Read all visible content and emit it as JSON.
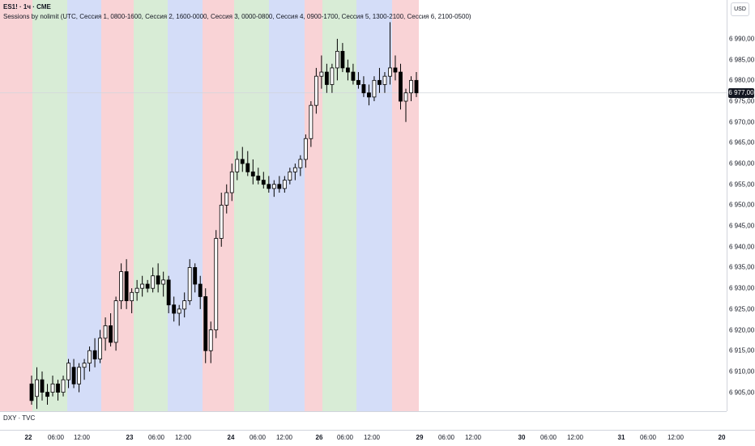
{
  "legend": {
    "symbol": "ES1! · 1ч · CME",
    "indicator": "Sessions by nolimit (UTC, Сессия 1, 0800-1600, Сессия 2, 1600-0000, Сессия 3, 0000-0800, Сессия 4, 0900-1700, Сессия 5, 1300-2100, Сессия 6, 2100-0500)"
  },
  "currency": "USD",
  "current_price_label": "6 977,00",
  "sub_pane_label": "DXY · TVC",
  "colors": {
    "session_red": "#f9d3d6",
    "session_green": "#d8ecd6",
    "session_blue": "#d4ddf8",
    "candle": "#000000"
  },
  "price_ticks": [
    "6 990,00",
    "6 985,00",
    "6 980,00",
    "6 975,00",
    "6 970,00",
    "6 965,00",
    "6 960,00",
    "6 955,00",
    "6 950,00",
    "6 945,00",
    "6 940,00",
    "6 935,00",
    "6 930,00",
    "6 925,00",
    "6 920,00",
    "6 915,00",
    "6 910,00",
    "6 905,00"
  ],
  "time_ticks": [
    {
      "label": "22",
      "bold": true
    },
    {
      "label": "06:00",
      "bold": false
    },
    {
      "label": "12:00",
      "bold": false
    },
    {
      "label": "23",
      "bold": true
    },
    {
      "label": "06:00",
      "bold": false
    },
    {
      "label": "12:00",
      "bold": false
    },
    {
      "label": "24",
      "bold": true
    },
    {
      "label": "06:00",
      "bold": false
    },
    {
      "label": "12:00",
      "bold": false
    },
    {
      "label": "26",
      "bold": true
    },
    {
      "label": "06:00",
      "bold": false
    },
    {
      "label": "12:00",
      "bold": false
    },
    {
      "label": "29",
      "bold": true
    },
    {
      "label": "06:00",
      "bold": false
    },
    {
      "label": "12:00",
      "bold": false
    },
    {
      "label": "30",
      "bold": true
    },
    {
      "label": "06:00",
      "bold": false
    },
    {
      "label": "12:00",
      "bold": false
    },
    {
      "label": "31",
      "bold": true
    },
    {
      "label": "06:00",
      "bold": false
    },
    {
      "label": "12:00",
      "bold": false
    },
    {
      "label": "20",
      "bold": true
    }
  ],
  "chart_data": {
    "type": "candlestick",
    "ylim": [
      6902,
      6997
    ],
    "current_price": 6977,
    "session_bands": [
      "red",
      "green",
      "blue",
      "red",
      "green",
      "blue",
      "red",
      "green",
      "blue",
      "red",
      "green",
      "blue",
      "red"
    ],
    "candles": [
      [
        6907,
        6909,
        6902,
        6903
      ],
      [
        6904,
        6911,
        6901,
        6908
      ],
      [
        6908,
        6910,
        6903,
        6905
      ],
      [
        6905,
        6907,
        6902,
        6904
      ],
      [
        6905,
        6909,
        6904,
        6907
      ],
      [
        6907,
        6908,
        6903,
        6905
      ],
      [
        6905,
        6909,
        6904,
        6908
      ],
      [
        6908,
        6913,
        6906,
        6912
      ],
      [
        6911,
        6913,
        6906,
        6907
      ],
      [
        6907,
        6912,
        6905,
        6911
      ],
      [
        6911,
        6913,
        6908,
        6912
      ],
      [
        6912,
        6916,
        6910,
        6915
      ],
      [
        6915,
        6918,
        6911,
        6913
      ],
      [
        6913,
        6920,
        6912,
        6918
      ],
      [
        6918,
        6923,
        6915,
        6921
      ],
      [
        6921,
        6924,
        6916,
        6917
      ],
      [
        6917,
        6928,
        6915,
        6927
      ],
      [
        6927,
        6936,
        6925,
        6934
      ],
      [
        6934,
        6937,
        6925,
        6927
      ],
      [
        6927,
        6930,
        6924,
        6929
      ],
      [
        6929,
        6932,
        6927,
        6930
      ],
      [
        6930,
        6933,
        6928,
        6931
      ],
      [
        6931,
        6932,
        6929,
        6930
      ],
      [
        6930,
        6935,
        6929,
        6933
      ],
      [
        6933,
        6936,
        6929,
        6931
      ],
      [
        6931,
        6934,
        6928,
        6932
      ],
      [
        6932,
        6933,
        6924,
        6926
      ],
      [
        6926,
        6928,
        6922,
        6924
      ],
      [
        6924,
        6926,
        6921,
        6925
      ],
      [
        6925,
        6929,
        6923,
        6927
      ],
      [
        6927,
        6937,
        6926,
        6935
      ],
      [
        6935,
        6936,
        6929,
        6931
      ],
      [
        6931,
        6933,
        6925,
        6928
      ],
      [
        6928,
        6930,
        6912,
        6915
      ],
      [
        6915,
        6922,
        6912,
        6920
      ],
      [
        6920,
        6944,
        6918,
        6942
      ],
      [
        6942,
        6953,
        6940,
        6950
      ],
      [
        6950,
        6955,
        6948,
        6953
      ],
      [
        6953,
        6960,
        6951,
        6958
      ],
      [
        6958,
        6963,
        6956,
        6961
      ],
      [
        6961,
        6964,
        6958,
        6960
      ],
      [
        6960,
        6963,
        6957,
        6958
      ],
      [
        6958,
        6961,
        6955,
        6957
      ],
      [
        6957,
        6959,
        6955,
        6956
      ],
      [
        6956,
        6958,
        6954,
        6955
      ],
      [
        6955,
        6957,
        6953,
        6954
      ],
      [
        6954,
        6956,
        6952,
        6955
      ],
      [
        6955,
        6957,
        6953,
        6954
      ],
      [
        6954,
        6957,
        6953,
        6956
      ],
      [
        6956,
        6959,
        6955,
        6958
      ],
      [
        6958,
        6960,
        6956,
        6959
      ],
      [
        6959,
        6962,
        6957,
        6961
      ],
      [
        6961,
        6967,
        6959,
        6966
      ],
      [
        6966,
        6975,
        6964,
        6974
      ],
      [
        6974,
        6983,
        6972,
        6981
      ],
      [
        6981,
        6986,
        6978,
        6982
      ],
      [
        6982,
        6984,
        6977,
        6979
      ],
      [
        6979,
        6984,
        6977,
        6983
      ],
      [
        6983,
        6990,
        6980,
        6987
      ],
      [
        6987,
        6989,
        6982,
        6983
      ],
      [
        6983,
        6985,
        6980,
        6982
      ],
      [
        6982,
        6984,
        6979,
        6980
      ],
      [
        6980,
        6982,
        6978,
        6979
      ],
      [
        6979,
        6981,
        6976,
        6977
      ],
      [
        6977,
        6979,
        6974,
        6976
      ],
      [
        6976,
        6981,
        6975,
        6980
      ],
      [
        6980,
        6983,
        6977,
        6979
      ],
      [
        6979,
        6982,
        6977,
        6981
      ],
      [
        6981,
        6994,
        6979,
        6983
      ],
      [
        6983,
        6986,
        6980,
        6982
      ],
      [
        6982,
        6984,
        6973,
        6975
      ],
      [
        6975,
        6978,
        6970,
        6977
      ],
      [
        6977,
        6981,
        6975,
        6980
      ],
      [
        6980,
        6982,
        6976,
        6977
      ]
    ]
  }
}
